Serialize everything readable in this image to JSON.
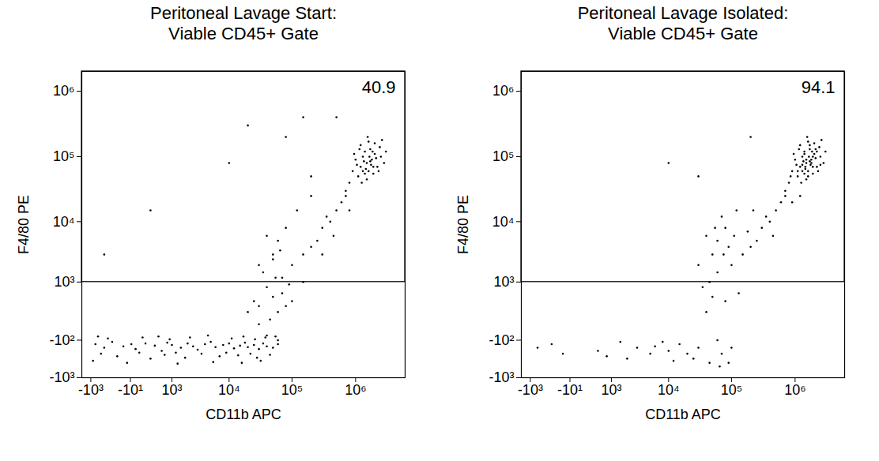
{
  "chart_data": [
    {
      "type": "scatter",
      "title": "Peritoneal Lavage Start:",
      "subtitle": "Viable CD45+ Gate",
      "x_label": "CD11b APC",
      "y_label": "F4/80 PE",
      "log": true,
      "color": "#000000",
      "marker": "dot",
      "xlim": [
        -1500,
        6000000
      ],
      "ylim": [
        -1000,
        2000000
      ],
      "xticks": [
        {
          "value": -1000,
          "label": "-10³"
        },
        {
          "value": -10,
          "label": "-10¹"
        },
        {
          "value": 1000,
          "label": "10³"
        },
        {
          "value": 10000,
          "label": "10⁴"
        },
        {
          "value": 100000,
          "label": "10⁵"
        },
        {
          "value": 1000000,
          "label": "10⁶"
        }
      ],
      "yticks": [
        {
          "value": 1000000,
          "label": "10⁶"
        },
        {
          "value": 100000,
          "label": "10⁵"
        },
        {
          "value": 10000,
          "label": "10⁴"
        },
        {
          "value": 1000,
          "label": "10³"
        },
        {
          "value": -100,
          "label": "-10²"
        },
        {
          "value": -1000,
          "label": "-10³"
        }
      ],
      "gate": {
        "xmin": -1500,
        "xmax": 6000000,
        "ymin": 1000,
        "ymax": 2000000,
        "percent": 40.9
      },
      "x": [
        1500000,
        1200000,
        1800000,
        2000000,
        1300000,
        1600000,
        1100000,
        2200000,
        1400000,
        1700000,
        900000,
        2500000,
        1000000,
        1900000,
        1500000,
        2400000,
        1200000,
        800000,
        2800000,
        1600000,
        1350000,
        1750000,
        1450000,
        2100000,
        1050000,
        1250000,
        2000000,
        700000,
        3000000,
        1550000,
        950000,
        1850000,
        2300000,
        1150000,
        1650000,
        1400000,
        2600000,
        1900000,
        1300000,
        1700000,
        600000,
        500000,
        400000,
        300000,
        700000,
        250000,
        200000,
        150000,
        100000,
        450000,
        350000,
        800000,
        60000,
        50000,
        80000,
        120000,
        30000,
        70000,
        200000,
        40000,
        40000,
        50000,
        30000,
        60000,
        45000,
        55000,
        35000,
        70000,
        25000,
        80000,
        40000,
        60000,
        30000,
        90000,
        20000,
        50000,
        100000,
        150000,
        65000,
        300000,
        -800,
        -500,
        -300,
        -100,
        0,
        50,
        200,
        400,
        600,
        800,
        1000,
        1500,
        2000,
        2500,
        3000,
        4000,
        5000,
        6000,
        8000,
        10000,
        12000,
        15000,
        18000,
        20000,
        25000,
        30000,
        35000,
        40000,
        50000,
        60000,
        -600,
        -200,
        100,
        300,
        700,
        1200,
        1800,
        3500,
        7000,
        9000,
        14000,
        22000,
        28000,
        45000,
        -400,
        -700,
        150,
        500,
        900,
        2200,
        4500,
        11000,
        17000,
        26000,
        38000,
        55000,
        -900,
        -50,
        1300,
        5500,
        16000,
        32000,
        300,
        20000,
        80000,
        150000,
        -500,
        10000,
        200000,
        500000
      ],
      "y": [
        80000,
        70000,
        90000,
        110000,
        100000,
        60000,
        50000,
        70000,
        120000,
        130000,
        60000,
        100000,
        90000,
        55000,
        45000,
        140000,
        150000,
        40000,
        80000,
        170000,
        85000,
        75000,
        65000,
        95000,
        75000,
        40000,
        160000,
        30000,
        120000,
        200000,
        110000,
        120000,
        60000,
        130000,
        100000,
        55000,
        180000,
        70000,
        60000,
        85000,
        20000,
        15000,
        10000,
        8000,
        25000,
        5000,
        4000,
        3000,
        2000,
        6000,
        12000,
        15000,
        5000,
        3000,
        8000,
        15000,
        2000,
        1200,
        25000,
        6000,
        800,
        500,
        300,
        200,
        100,
        1200,
        1500,
        600,
        400,
        300,
        -50,
        -100,
        50,
        900,
        200,
        2500,
        400,
        1000,
        3500,
        3000,
        -150,
        -200,
        -120,
        -180,
        -150,
        -220,
        -140,
        -170,
        -250,
        -130,
        -160,
        -200,
        -140,
        -180,
        -230,
        -150,
        -120,
        -190,
        -160,
        -140,
        -210,
        -170,
        -130,
        -190,
        -160,
        -220,
        -140,
        -180,
        -200,
        -150,
        -300,
        -350,
        -280,
        -400,
        -320,
        -280,
        -380,
        -300,
        -350,
        -280,
        -330,
        -300,
        -380,
        -320,
        -80,
        -60,
        -70,
        -60,
        -90,
        -70,
        -50,
        -80,
        -60,
        -90,
        -70,
        -60,
        -450,
        -500,
        -520,
        -480,
        -500,
        -450,
        15000,
        300000,
        200000,
        400000,
        3000,
        80000,
        50000,
        400000
      ]
    },
    {
      "type": "scatter",
      "title": "Peritoneal Lavage Isolated:",
      "subtitle": "Viable CD45+ Gate",
      "x_label": "CD11b APC",
      "y_label": "F4/80 PE",
      "log": true,
      "color": "#000000",
      "marker": "dot",
      "xlim": [
        -1500,
        6000000
      ],
      "ylim": [
        -1000,
        2000000
      ],
      "xticks": [
        {
          "value": -1000,
          "label": "-10³"
        },
        {
          "value": -10,
          "label": "-10¹"
        },
        {
          "value": 1000,
          "label": "10³"
        },
        {
          "value": 10000,
          "label": "10⁴"
        },
        {
          "value": 100000,
          "label": "10⁵"
        },
        {
          "value": 1000000,
          "label": "10⁶"
        }
      ],
      "yticks": [
        {
          "value": 1000000,
          "label": "10⁶"
        },
        {
          "value": 100000,
          "label": "10⁵"
        },
        {
          "value": 10000,
          "label": "10⁴"
        },
        {
          "value": 1000,
          "label": "10³"
        },
        {
          "value": -100,
          "label": "-10²"
        },
        {
          "value": -1000,
          "label": "-10³"
        }
      ],
      "gate": {
        "xmin": -1500,
        "xmax": 6000000,
        "ymin": 1000,
        "ymax": 2000000,
        "percent": 94.1
      },
      "x": [
        1500000,
        1200000,
        1800000,
        2000000,
        1300000,
        1600000,
        1100000,
        2200000,
        1400000,
        1700000,
        900000,
        2500000,
        1000000,
        1900000,
        1500000,
        2400000,
        1200000,
        800000,
        2800000,
        1600000,
        1350000,
        1750000,
        1450000,
        2100000,
        1050000,
        1250000,
        2000000,
        700000,
        3000000,
        1550000,
        950000,
        1850000,
        2300000,
        1150000,
        1650000,
        1400000,
        2600000,
        1900000,
        1300000,
        1700000,
        1500000,
        1300000,
        1800000,
        1600000,
        2100000,
        1100000,
        1400000,
        1900000,
        2500000,
        850000,
        1200000,
        900000,
        2200000,
        1700000,
        1450000,
        600000,
        500000,
        400000,
        300000,
        700000,
        250000,
        200000,
        150000,
        100000,
        450000,
        350000,
        80000,
        60000,
        50000,
        120000,
        40000,
        70000,
        90000,
        30000,
        180000,
        60000,
        45000,
        110000,
        220000,
        55000,
        75000,
        50000,
        40000,
        60000,
        30000,
        70000,
        80000,
        25000,
        45000,
        100000,
        35000,
        20000,
        15000,
        10000,
        6000,
        3000,
        1500,
        500,
        -300,
        -700,
        800,
        2000,
        5000,
        8000,
        12000,
        130000,
        90000,
        -100,
        65000,
        30000,
        10000,
        200000
      ],
      "y": [
        80000,
        70000,
        90000,
        110000,
        100000,
        60000,
        50000,
        70000,
        120000,
        130000,
        60000,
        100000,
        90000,
        55000,
        45000,
        140000,
        150000,
        40000,
        80000,
        170000,
        85000,
        75000,
        65000,
        95000,
        75000,
        40000,
        160000,
        30000,
        120000,
        200000,
        110000,
        120000,
        60000,
        130000,
        100000,
        55000,
        180000,
        70000,
        60000,
        85000,
        90000,
        75000,
        80000,
        50000,
        130000,
        60000,
        110000,
        100000,
        75000,
        50000,
        25000,
        20000,
        120000,
        150000,
        70000,
        20000,
        15000,
        10000,
        8000,
        25000,
        5000,
        4000,
        3000,
        2000,
        6000,
        12000,
        8000,
        5000,
        3000,
        15000,
        6000,
        12000,
        4000,
        2000,
        7000,
        1500,
        1000,
        6000,
        15000,
        8000,
        3000,
        500,
        200,
        -100,
        -200,
        -300,
        400,
        -400,
        -500,
        -200,
        800,
        -300,
        -150,
        -250,
        -180,
        -200,
        -120,
        -250,
        -150,
        -200,
        -350,
        -400,
        -300,
        -120,
        -450,
        600,
        -500,
        -300,
        -600,
        50000,
        80000,
        200000
      ]
    }
  ]
}
